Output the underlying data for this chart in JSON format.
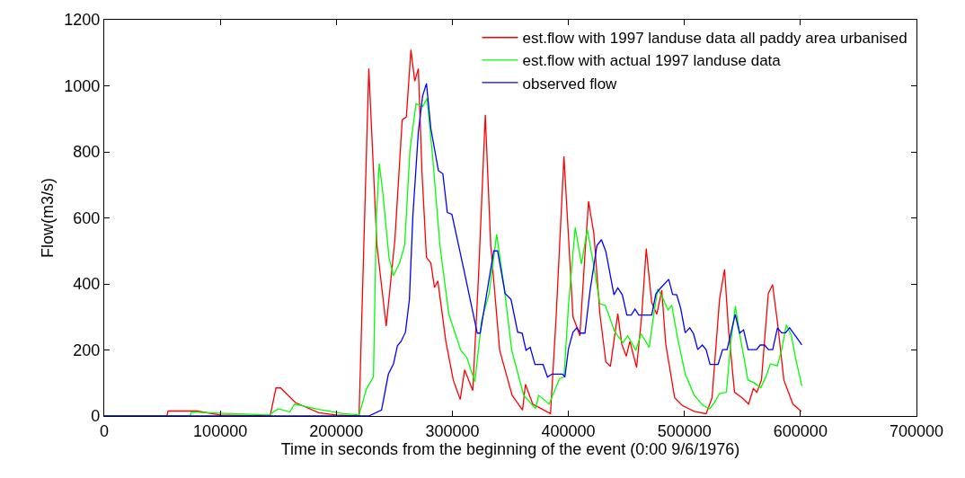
{
  "chart_data": {
    "type": "line",
    "xlabel": "Time in seconds from the beginning of the event (0:00 9/6/1976)",
    "ylabel": "Flow(m3/s)",
    "xlim": [
      0,
      700000
    ],
    "xticks": [
      0,
      100000,
      200000,
      300000,
      400000,
      500000,
      600000,
      700000
    ],
    "ylim": [
      0,
      1200
    ],
    "yticks": [
      0,
      200,
      400,
      600,
      800,
      1000,
      1200
    ],
    "grid": false,
    "legend": "top right",
    "marker": "none",
    "line_style": "solid",
    "series": [
      {
        "name": "est.flow with 1997 landuse data all paddy area urbanised",
        "color": "#ff0000",
        "x": [
          0,
          54000,
          55000,
          80000,
          100000,
          143000,
          148000,
          152000,
          165000,
          185000,
          200000,
          219600,
          228000,
          235000,
          243000,
          250500,
          256800,
          260400,
          264300,
          267600,
          270700,
          273800,
          277700,
          281500,
          284600,
          287500,
          294400,
          300800,
          306800,
          310600,
          317600,
          322600,
          328400,
          333100,
          340800,
          351500,
          360500,
          363000,
          369300,
          384600,
          389300,
          396200,
          404000,
          406600,
          409900,
          414300,
          417400,
          422000,
          427200,
          432300,
          436200,
          442600,
          446000,
          449900,
          453000,
          458800,
          463300,
          467100,
          471800,
          476200,
          480500,
          483900,
          491600,
          498100,
          508400,
          518700,
          523800,
          530300,
          534600,
          538000,
          543200,
          549700,
          555300,
          559400,
          562500,
          566400,
          572300,
          576000,
          580600,
          585700,
          593500,
          600700
        ],
        "values": [
          0,
          0,
          15,
          15,
          3,
          0,
          85,
          85,
          40,
          10,
          3,
          0,
          1052,
          517,
          272,
          534,
          897,
          906,
          1109,
          1014,
          1052,
          742,
          480,
          463,
          389,
          409,
          226,
          109,
          50,
          140,
          77,
          425,
          912,
          517,
          199,
          63,
          18,
          96,
          36,
          7,
          290,
          786,
          300,
          276,
          243,
          490,
          650,
          552,
          308,
          164,
          150,
          310,
          218,
          181,
          226,
          147,
          308,
          507,
          344,
          308,
          381,
          218,
          55,
          32,
          14,
          7,
          55,
          354,
          444,
          263,
          72,
          55,
          36,
          83,
          72,
          109,
          371,
          398,
          272,
          109,
          36,
          14
        ]
      },
      {
        "name": "est.flow with actual 1997 landuse data",
        "color": "#00ff00",
        "x": [
          0,
          74000,
          75000,
          140000,
          142000,
          150000,
          160000,
          164000,
          185000,
          205000,
          219600,
          226000,
          232000,
          234600,
          237000,
          240300,
          245400,
          249300,
          254500,
          258900,
          263500,
          268700,
          274400,
          278200,
          282900,
          289300,
          297000,
          307300,
          312500,
          319400,
          325300,
          331700,
          338200,
          344700,
          351200,
          361500,
          371800,
          374400,
          383400,
          392300,
          396200,
          400100,
          405900,
          411300,
          416300,
          422000,
          427200,
          431800,
          440100,
          447100,
          451100,
          458100,
          462700,
          469700,
          473600,
          477000,
          481300,
          485800,
          489100,
          494200,
          500700,
          508400,
          516100,
          521800,
          525900,
          530300,
          536200,
          539800,
          543900,
          548300,
          554700,
          559900,
          565800,
          570200,
          574100,
          580000,
          583700,
          587800,
          592100,
          596000,
          601200
        ],
        "values": [
          0,
          0,
          12,
          3,
          3,
          22,
          12,
          36,
          20,
          8,
          3,
          82,
          118,
          607,
          765,
          670,
          480,
          425,
          463,
          517,
          806,
          946,
          937,
          962,
          789,
          517,
          308,
          199,
          177,
          104,
          290,
          371,
          550,
          389,
          199,
          63,
          22,
          63,
          36,
          113,
          118,
          335,
          571,
          460,
          566,
          453,
          340,
          335,
          254,
          222,
          243,
          199,
          249,
          208,
          308,
          385,
          358,
          321,
          335,
          235,
          127,
          63,
          32,
          22,
          41,
          68,
          72,
          218,
          333,
          235,
          109,
          101,
          86,
          118,
          158,
          152,
          199,
          276,
          245,
          172,
          91
        ]
      },
      {
        "name": "observed flow",
        "color": "#0000ff",
        "x": [
          0,
          228000,
          239000,
          244900,
          249300,
          252700,
          255800,
          259600,
          263000,
          266000,
          270700,
          274400,
          277700,
          281500,
          288000,
          291800,
          295700,
          299600,
          309900,
          321500,
          324000,
          335700,
          339000,
          345500,
          350600,
          356300,
          360200,
          363500,
          367100,
          371200,
          378200,
          382000,
          385900,
          394900,
          397000,
          400100,
          404000,
          407400,
          410500,
          414300,
          418700,
          424600,
          428500,
          432300,
          439300,
          442600,
          446500,
          450400,
          454200,
          457400,
          460700,
          471800,
          475400,
          478800,
          486500,
          489800,
          493400,
          496800,
          500700,
          504600,
          507900,
          511500,
          515400,
          518700,
          522100,
          529000,
          532900,
          536800,
          543800,
          547600,
          551000,
          554900,
          562200,
          565300,
          569100,
          572500,
          576100,
          580200,
          583800,
          587200,
          590600,
          596300,
          601200
        ],
        "values": [
          0,
          0,
          18,
          127,
          158,
          213,
          226,
          254,
          353,
          607,
          860,
          969,
          1007,
          870,
          743,
          734,
          616,
          611,
          444,
          251,
          251,
          500,
          500,
          371,
          353,
          254,
          251,
          199,
          208,
          156,
          156,
          118,
          127,
          127,
          118,
          204,
          254,
          267,
          251,
          251,
          380,
          516,
          534,
          498,
          367,
          388,
          367,
          306,
          306,
          324,
          306,
          306,
          370,
          385,
          414,
          368,
          367,
          326,
          252,
          267,
          249,
          201,
          215,
          201,
          156,
          156,
          201,
          201,
          308,
          251,
          261,
          201,
          201,
          215,
          215,
          201,
          201,
          267,
          252,
          252,
          267,
          240,
          215
        ]
      }
    ]
  }
}
